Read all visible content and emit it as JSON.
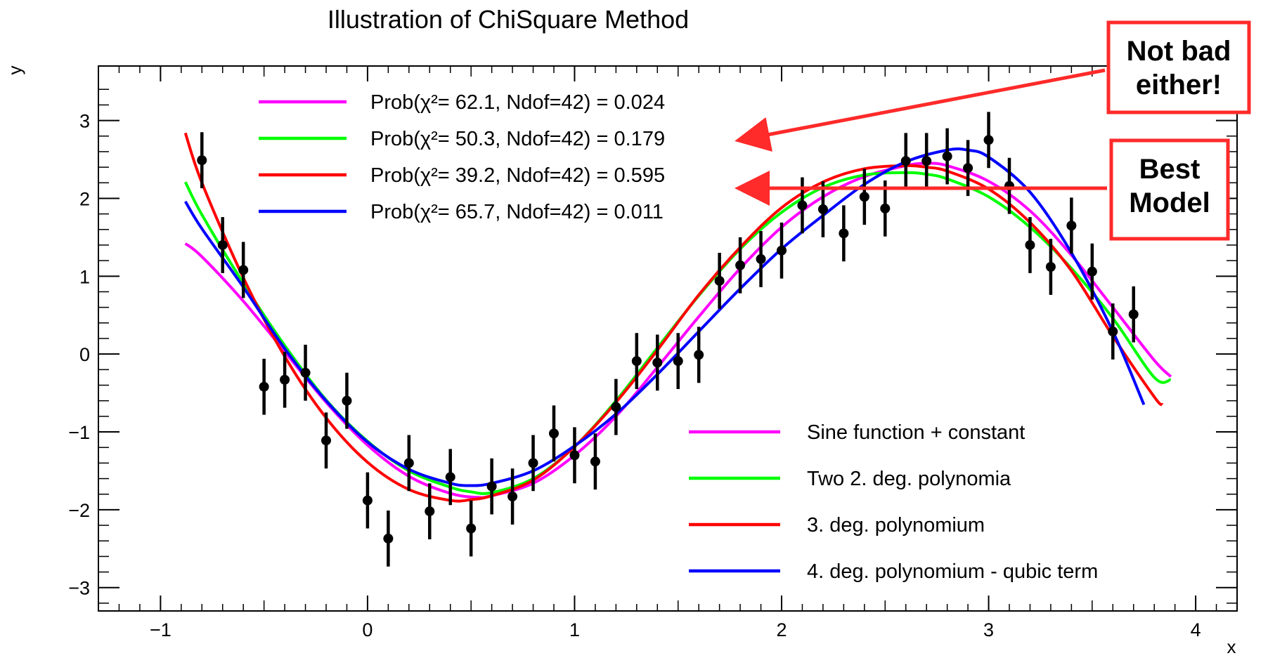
{
  "chart_data": {
    "type": "scatter",
    "title": "Illustration of ChiSquare Method",
    "xlabel": "x",
    "ylabel": "y",
    "xlim": [
      -1.3,
      4.2
    ],
    "ylim": [
      -3.3,
      3.7
    ],
    "xticks": [
      -1,
      0,
      1,
      2,
      3,
      4
    ],
    "yticks": [
      -3,
      -2,
      -1,
      0,
      1,
      2,
      3
    ],
    "xtick_labels": [
      "−1",
      "0",
      "1",
      "2",
      "3",
      "4"
    ],
    "ytick_labels": [
      "−3",
      "−2",
      "−1",
      "0",
      "1",
      "2",
      "3"
    ],
    "grid": false,
    "points": {
      "x": [
        -0.8,
        -0.7,
        -0.6,
        -0.5,
        -0.4,
        -0.3,
        -0.2,
        -0.1,
        0.0,
        0.1,
        0.2,
        0.3,
        0.4,
        0.5,
        0.6,
        0.7,
        0.8,
        0.9,
        1.0,
        1.1,
        1.2,
        1.3,
        1.4,
        1.5,
        1.6,
        1.7,
        1.8,
        1.9,
        2.0,
        2.1,
        2.2,
        2.3,
        2.4,
        2.5,
        2.6,
        2.7,
        2.8,
        2.9,
        3.0,
        3.1,
        3.2,
        3.3,
        3.4,
        3.5,
        3.6,
        3.7
      ],
      "y": [
        2.49,
        1.4,
        1.08,
        -0.42,
        -0.33,
        -0.24,
        -1.11,
        -0.6,
        -1.88,
        -2.37,
        -1.4,
        -2.02,
        -1.58,
        -2.24,
        -1.7,
        -1.83,
        -1.4,
        -1.02,
        -1.3,
        -1.38,
        -0.68,
        -0.09,
        -0.11,
        -0.09,
        -0.01,
        0.94,
        1.14,
        1.22,
        1.33,
        1.91,
        1.86,
        1.55,
        2.02,
        1.87,
        2.48,
        2.48,
        2.54,
        2.39,
        2.75,
        2.16,
        1.4,
        1.12,
        1.65,
        1.06,
        0.29,
        0.51
      ],
      "yerr": 0.36
    },
    "series": [
      {
        "name": "Sine function + constant",
        "color": "#ff00ff",
        "x_range": [
          -0.88,
          3.88
        ],
        "x_samples": [
          -0.88,
          -0.8,
          -0.6,
          -0.4,
          -0.2,
          0.0,
          0.2,
          0.4,
          0.53,
          0.6,
          0.8,
          1.0,
          1.2,
          1.4,
          1.6,
          1.8,
          2.0,
          2.2,
          2.4,
          2.6,
          2.7,
          2.8,
          3.0,
          3.2,
          3.4,
          3.6,
          3.8,
          3.88
        ],
        "y_samples": [
          1.42,
          1.25,
          0.68,
          0.03,
          -0.62,
          -1.17,
          -1.57,
          -1.79,
          -1.84,
          -1.82,
          -1.66,
          -1.3,
          -0.8,
          -0.17,
          0.48,
          1.1,
          1.63,
          2.02,
          2.28,
          2.42,
          2.45,
          2.42,
          2.22,
          1.84,
          1.27,
          0.6,
          -0.08,
          -0.29
        ]
      },
      {
        "name": "Two 2. deg. polynomia",
        "color": "#00ff00",
        "x_range": [
          -0.88,
          3.88
        ],
        "x_samples": [
          -0.88,
          -0.8,
          -0.6,
          -0.4,
          -0.2,
          0.0,
          0.2,
          0.4,
          0.5,
          0.6,
          0.8,
          1.0,
          1.2,
          1.4,
          1.6,
          1.8,
          2.0,
          2.2,
          2.4,
          2.6,
          2.7,
          2.8,
          3.0,
          3.2,
          3.4,
          3.6,
          3.8,
          3.88
        ],
        "y_samples": [
          2.21,
          1.79,
          0.91,
          0.11,
          -0.59,
          -1.12,
          -1.5,
          -1.71,
          -1.77,
          -1.78,
          -1.6,
          -1.19,
          -0.6,
          0.08,
          0.75,
          1.35,
          1.82,
          2.14,
          2.3,
          2.33,
          2.31,
          2.25,
          2.02,
          1.63,
          1.1,
          0.46,
          -0.3,
          -0.33
        ]
      },
      {
        "name": "3. deg. polynomium",
        "color": "#ff0000",
        "x_range": [
          -0.88,
          3.84
        ],
        "x_samples": [
          -0.88,
          -0.8,
          -0.6,
          -0.4,
          -0.2,
          0.0,
          0.2,
          0.4,
          0.5,
          0.6,
          0.8,
          1.0,
          1.2,
          1.4,
          1.6,
          1.8,
          2.0,
          2.2,
          2.4,
          2.6,
          2.7,
          2.8,
          3.0,
          3.2,
          3.4,
          3.6,
          3.8,
          3.84
        ],
        "y_samples": [
          2.84,
          2.2,
          0.98,
          -0.03,
          -0.82,
          -1.39,
          -1.74,
          -1.88,
          -1.87,
          -1.82,
          -1.62,
          -1.19,
          -0.62,
          0.05,
          0.76,
          1.37,
          1.88,
          2.21,
          2.38,
          2.42,
          2.4,
          2.35,
          2.12,
          1.69,
          1.07,
          0.23,
          -0.55,
          -0.65
        ]
      },
      {
        "name": "4. deg. polynomium - qubic term",
        "color": "#0000ff",
        "x_range": [
          -0.88,
          3.75
        ],
        "x_samples": [
          -0.88,
          -0.8,
          -0.6,
          -0.4,
          -0.2,
          0.0,
          0.2,
          0.4,
          0.5,
          0.6,
          0.8,
          1.0,
          1.2,
          1.4,
          1.6,
          1.8,
          2.0,
          2.2,
          2.4,
          2.6,
          2.8,
          2.9,
          3.0,
          3.2,
          3.4,
          3.6,
          3.75
        ],
        "y_samples": [
          1.96,
          1.61,
          0.86,
          0.07,
          -0.6,
          -1.13,
          -1.48,
          -1.66,
          -1.69,
          -1.66,
          -1.5,
          -1.18,
          -0.77,
          -0.26,
          0.29,
          0.84,
          1.35,
          1.78,
          2.18,
          2.47,
          2.62,
          2.62,
          2.53,
          2.08,
          1.3,
          0.29,
          -0.65
        ]
      }
    ],
    "top_legend": [
      {
        "text": "Prob(χ²= 62.1, Ndof=42) = 0.024",
        "color": "#ff00ff"
      },
      {
        "text": "Prob(χ²= 50.3, Ndof=42) = 0.179",
        "color": "#00ff00"
      },
      {
        "text": "Prob(χ²= 39.2, Ndof=42) = 0.595",
        "color": "#ff0000"
      },
      {
        "text": "Prob(χ²= 65.7, Ndof=42) = 0.011",
        "color": "#0000ff"
      }
    ],
    "legend_placement": "bottom-right",
    "annotations": [
      {
        "text_lines": [
          "Not bad",
          "either!"
        ],
        "points_to": "Prob(χ²= 50.3, Ndof=42) = 0.179",
        "color": "#ff2a2a"
      },
      {
        "text_lines": [
          "Best",
          "Model"
        ],
        "points_to": "Prob(χ²= 39.2, Ndof=42) = 0.595",
        "color": "#ff2a2a"
      }
    ]
  }
}
